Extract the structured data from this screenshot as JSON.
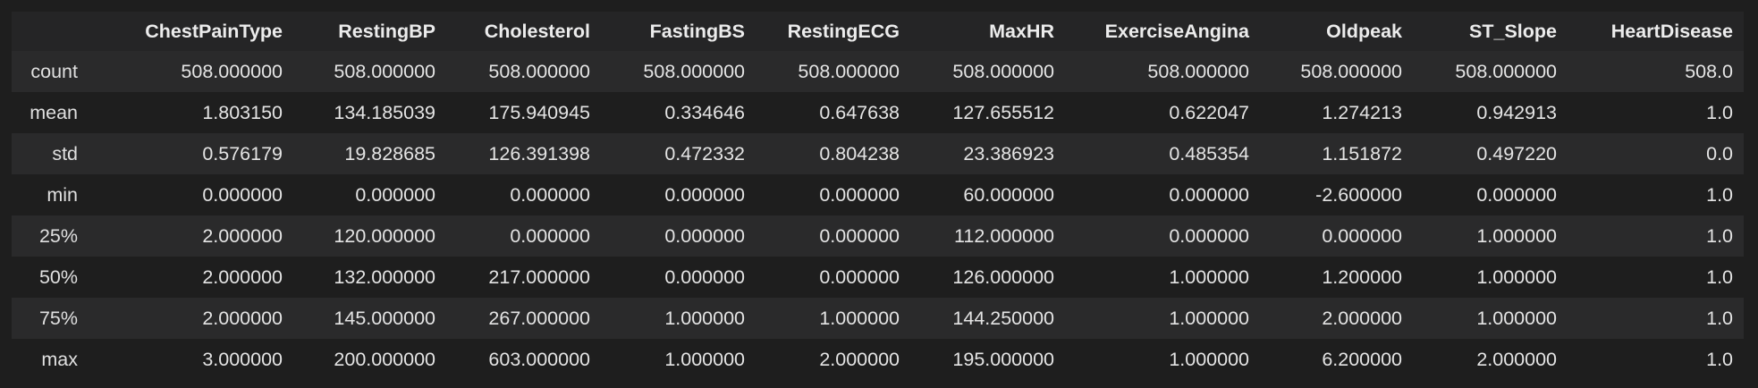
{
  "dataframe": {
    "columns": [
      "ChestPainType",
      "RestingBP",
      "Cholesterol",
      "FastingBS",
      "RestingECG",
      "MaxHR",
      "ExerciseAngina",
      "Oldpeak",
      "ST_Slope",
      "HeartDisease"
    ],
    "rows": [
      {
        "index": "count",
        "cells": [
          "508.000000",
          "508.000000",
          "508.000000",
          "508.000000",
          "508.000000",
          "508.000000",
          "508.000000",
          "508.000000",
          "508.000000",
          "508.0"
        ]
      },
      {
        "index": "mean",
        "cells": [
          "1.803150",
          "134.185039",
          "175.940945",
          "0.334646",
          "0.647638",
          "127.655512",
          "0.622047",
          "1.274213",
          "0.942913",
          "1.0"
        ]
      },
      {
        "index": "std",
        "cells": [
          "0.576179",
          "19.828685",
          "126.391398",
          "0.472332",
          "0.804238",
          "23.386923",
          "0.485354",
          "1.151872",
          "0.497220",
          "0.0"
        ]
      },
      {
        "index": "min",
        "cells": [
          "0.000000",
          "0.000000",
          "0.000000",
          "0.000000",
          "0.000000",
          "60.000000",
          "0.000000",
          "-2.600000",
          "0.000000",
          "1.0"
        ]
      },
      {
        "index": "25%",
        "cells": [
          "2.000000",
          "120.000000",
          "0.000000",
          "0.000000",
          "0.000000",
          "112.000000",
          "0.000000",
          "0.000000",
          "1.000000",
          "1.0"
        ]
      },
      {
        "index": "50%",
        "cells": [
          "2.000000",
          "132.000000",
          "217.000000",
          "0.000000",
          "0.000000",
          "126.000000",
          "1.000000",
          "1.200000",
          "1.000000",
          "1.0"
        ]
      },
      {
        "index": "75%",
        "cells": [
          "2.000000",
          "145.000000",
          "267.000000",
          "1.000000",
          "1.000000",
          "144.250000",
          "1.000000",
          "2.000000",
          "1.000000",
          "1.0"
        ]
      },
      {
        "index": "max",
        "cells": [
          "3.000000",
          "200.000000",
          "603.000000",
          "1.000000",
          "2.000000",
          "195.000000",
          "1.000000",
          "6.200000",
          "2.000000",
          "1.0"
        ]
      }
    ]
  },
  "colors": {
    "background": "#1e1e1e",
    "header_background": "#252526",
    "stripe_background": "#2a2a2b",
    "text": "#e6e6e6"
  }
}
